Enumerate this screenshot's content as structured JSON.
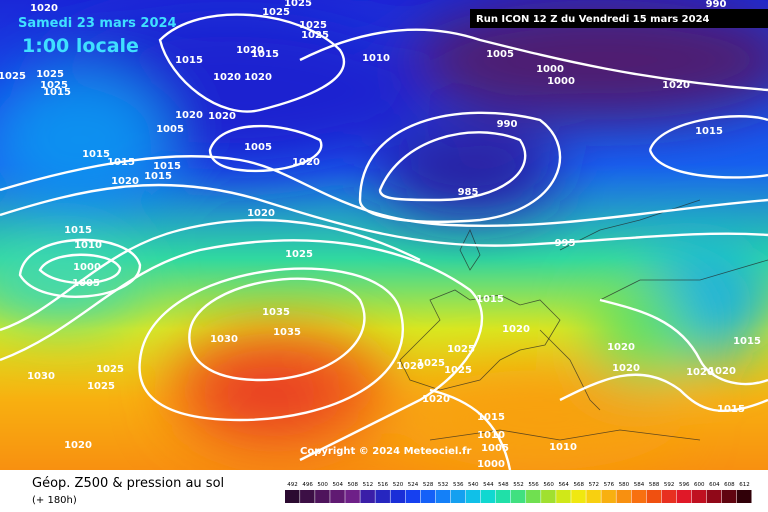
{
  "header": {
    "date": "Samedi 23 mars 2024",
    "time": "1:00 locale",
    "run": "Run ICON 12 Z du Vendredi 15 mars 2024"
  },
  "copyright": "Copyright © 2024 Meteociel.fr",
  "footer": {
    "title": "Géop. Z500 & pression au sol",
    "lead": "(+ 180h)"
  },
  "pressure_labels": [
    "1020",
    "1025",
    "1025",
    "1025",
    "1025",
    "1025",
    "1025",
    "1025",
    "1015",
    "1015",
    "1020",
    "1015",
    "1020",
    "1020",
    "1010",
    "1005",
    "1000",
    "1000",
    "1020",
    "990",
    "990",
    "1015",
    "1020",
    "1020",
    "1005",
    "1005",
    "1020",
    "1015",
    "1015",
    "1015",
    "1020",
    "1015",
    "985",
    "995",
    "1020",
    "1015",
    "1010",
    "1000",
    "1005",
    "1025",
    "1015",
    "1020",
    "1035",
    "1035",
    "1030",
    "1025",
    "1025",
    "1025",
    "1020",
    "1025",
    "1030",
    "1025",
    "1020",
    "1020",
    "1015",
    "1020",
    "1020",
    "1015",
    "1020",
    "1015",
    "1010",
    "1005",
    "1000",
    "1010",
    "1020"
  ],
  "legend": {
    "levels": [
      492,
      496,
      500,
      504,
      508,
      512,
      516,
      520,
      524,
      528,
      532,
      536,
      540,
      544,
      548,
      552,
      556,
      560,
      564,
      568,
      572,
      576,
      580,
      584,
      588,
      592,
      596,
      600,
      604,
      608,
      612
    ],
    "colors": [
      "#2b0a30",
      "#3c0f45",
      "#4e145c",
      "#601a72",
      "#6e2088",
      "#3a1ea8",
      "#2626c0",
      "#1a2ed8",
      "#1640f0",
      "#1460f8",
      "#1480f8",
      "#14a0f0",
      "#10c0e8",
      "#10d8d0",
      "#20e0a8",
      "#40e080",
      "#70e050",
      "#a0e030",
      "#d0e818",
      "#f0e810",
      "#f8d010",
      "#f8b010",
      "#f89010",
      "#f87010",
      "#f05010",
      "#e83020",
      "#e01828",
      "#c01020",
      "#900818",
      "#600410",
      "#300008"
    ]
  }
}
